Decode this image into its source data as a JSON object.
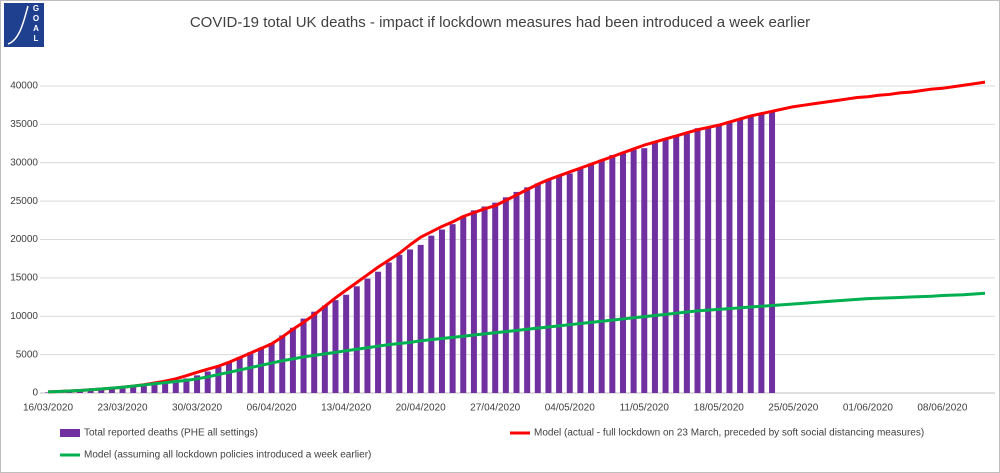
{
  "chart_data": {
    "type": "combo",
    "title": "COVID-19 total UK deaths - impact if lockdown measures had been introduced a week earlier",
    "logo": [
      "G",
      "O",
      "A",
      "L"
    ],
    "categories": [
      "16/03/2020",
      null,
      null,
      null,
      null,
      null,
      null,
      "23/03/2020",
      null,
      null,
      null,
      null,
      null,
      null,
      "30/03/2020",
      null,
      null,
      null,
      null,
      null,
      null,
      "06/04/2020",
      null,
      null,
      null,
      null,
      null,
      null,
      "13/04/2020",
      null,
      null,
      null,
      null,
      null,
      null,
      "20/04/2020",
      null,
      null,
      null,
      null,
      null,
      null,
      "27/04/2020",
      null,
      null,
      null,
      null,
      null,
      null,
      "04/05/2020",
      null,
      null,
      null,
      null,
      null,
      null,
      "11/05/2020",
      null,
      null,
      null,
      null,
      null,
      null,
      "18/05/2020",
      null,
      null,
      null,
      null,
      null,
      null,
      "25/05/2020",
      null,
      null,
      null,
      null,
      null,
      null,
      "01/06/2020",
      null,
      null,
      null,
      null,
      null,
      null,
      "08/06/2020",
      null,
      null,
      null,
      null
    ],
    "ylim": [
      0,
      40000
    ],
    "yticks": [
      0,
      5000,
      10000,
      15000,
      20000,
      25000,
      30000,
      35000,
      40000
    ],
    "grid": true,
    "series": [
      {
        "name": "Total reported deaths (PHE all settings)",
        "type": "bar",
        "color": "#7030a0",
        "values": [
          80,
          110,
          160,
          220,
          290,
          380,
          480,
          600,
          750,
          950,
          1200,
          1450,
          1700,
          1900,
          2300,
          2800,
          3400,
          4100,
          4700,
          5300,
          5900,
          6500,
          7500,
          8500,
          9700,
          10600,
          11400,
          12100,
          12800,
          13900,
          14900,
          15800,
          17000,
          18000,
          18700,
          19300,
          20500,
          21300,
          22000,
          23000,
          23800,
          24300,
          24800,
          25500,
          26200,
          26800,
          27300,
          27800,
          28300,
          28600,
          29200,
          29900,
          30400,
          31000,
          31300,
          31700,
          31900,
          32600,
          33200,
          33600,
          34000,
          34500,
          34700,
          35000,
          35400,
          35700,
          36000,
          36400,
          36800,
          null,
          null,
          null,
          null,
          null,
          null,
          null,
          null,
          null,
          null,
          null,
          null,
          null,
          null,
          null,
          null,
          null,
          null,
          null,
          null
        ]
      },
      {
        "name": "Model (actual - full lockdown on 23 March, preceded by soft social distancing measures)",
        "type": "line",
        "color": "#ff0000",
        "values": [
          150,
          200,
          260,
          330,
          420,
          520,
          620,
          750,
          900,
          1080,
          1300,
          1550,
          1850,
          2250,
          2700,
          3100,
          3500,
          4000,
          4600,
          5200,
          5800,
          6400,
          7300,
          8300,
          9200,
          10200,
          11300,
          12400,
          13400,
          14400,
          15400,
          16400,
          17300,
          18200,
          19300,
          20300,
          21000,
          21700,
          22300,
          23000,
          23500,
          24000,
          24400,
          25100,
          25800,
          26500,
          27200,
          27800,
          28300,
          28800,
          29300,
          29800,
          30300,
          30800,
          31300,
          31800,
          32300,
          32700,
          33100,
          33500,
          33900,
          34300,
          34600,
          34900,
          35300,
          35700,
          36100,
          36400,
          36700,
          37000,
          37300,
          37500,
          37700,
          37900,
          38100,
          38300,
          38500,
          38600,
          38800,
          38900,
          39100,
          39200,
          39400,
          39600,
          39700,
          39900,
          40100,
          40300,
          40500
        ]
      },
      {
        "name": "Model (assuming all lockdown policies introduced a week earlier)",
        "type": "line",
        "color": "#00b050",
        "values": [
          150,
          200,
          260,
          330,
          420,
          520,
          630,
          750,
          900,
          1050,
          1200,
          1350,
          1500,
          1650,
          1850,
          2100,
          2400,
          2700,
          3000,
          3300,
          3600,
          3900,
          4200,
          4450,
          4700,
          4900,
          5100,
          5300,
          5500,
          5700,
          5900,
          6100,
          6300,
          6450,
          6600,
          6800,
          6950,
          7100,
          7250,
          7400,
          7550,
          7700,
          7850,
          8000,
          8150,
          8300,
          8450,
          8600,
          8750,
          8900,
          9050,
          9200,
          9350,
          9500,
          9650,
          9800,
          9950,
          10100,
          10250,
          10400,
          10550,
          10700,
          10800,
          10900,
          11000,
          11100,
          11200,
          11300,
          11400,
          11500,
          11600,
          11700,
          11800,
          11900,
          12000,
          12100,
          12200,
          12300,
          12350,
          12400,
          12450,
          12500,
          12550,
          12600,
          12700,
          12750,
          12800,
          12900,
          13000
        ]
      }
    ]
  }
}
